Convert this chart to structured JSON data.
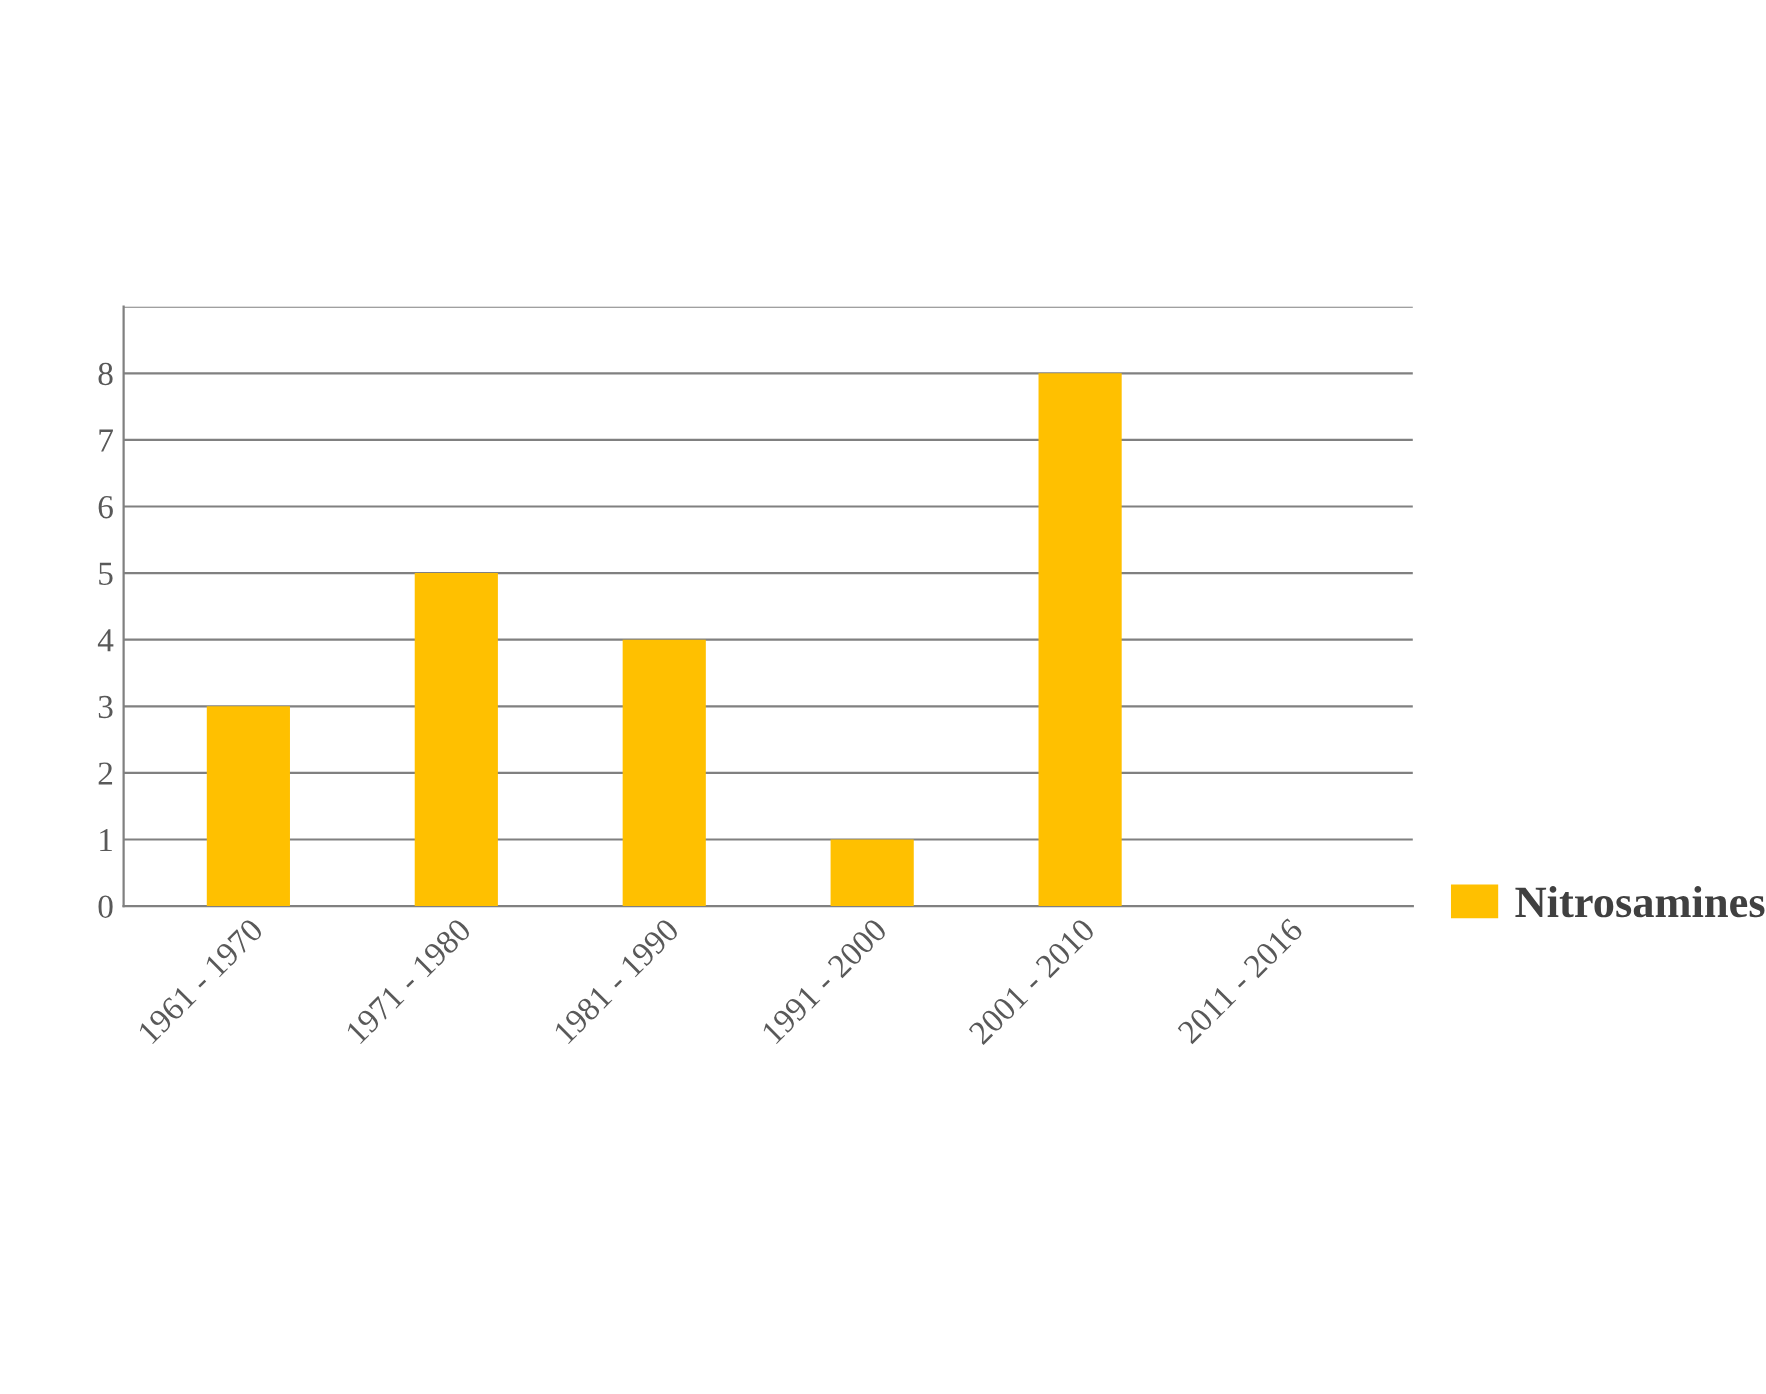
{
  "chart_data": {
    "type": "bar",
    "categories": [
      "1961 - 1970",
      "1971 - 1980",
      "1981 - 1990",
      "1991 - 2000",
      "2001 - 2010",
      "2011 - 2016"
    ],
    "series": [
      {
        "name": "Nitrosamines",
        "color": "#ffc000",
        "values": [
          3,
          5,
          4,
          1,
          8,
          0
        ]
      }
    ],
    "ylim": [
      0,
      9
    ],
    "yticks": [
      0,
      1,
      2,
      3,
      4,
      5,
      6,
      7,
      8,
      {
        "value": 9,
        "label": null
      }
    ],
    "grid": "y",
    "legend": "right"
  }
}
